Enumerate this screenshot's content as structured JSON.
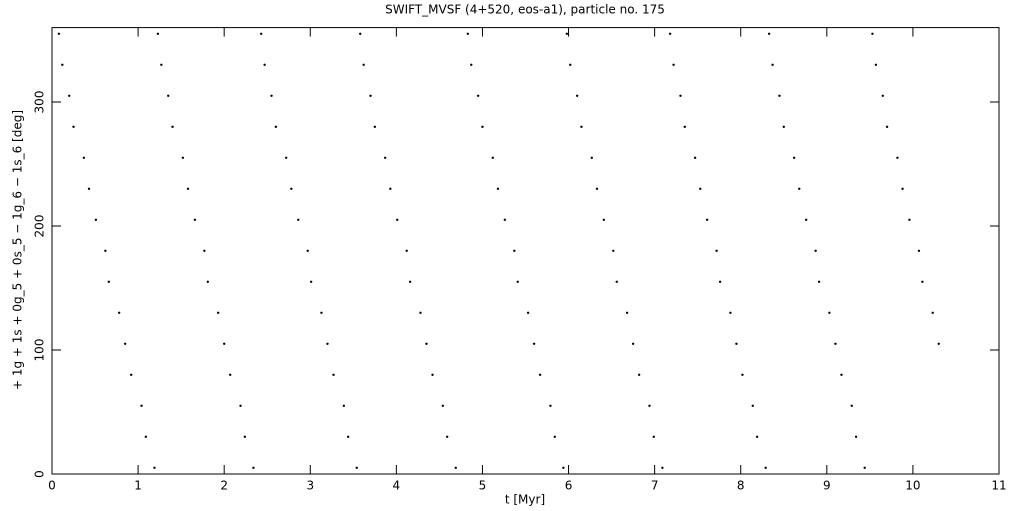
{
  "chart_data": {
    "type": "scatter",
    "title": "SWIFT_MVSF (4+520, eos-a1), particle no. 175",
    "x_label": "t [Myr]",
    "y_label": "+ 1g + 1s + 0g_5 + 0s_5 − 1g_6 − 1s_6 [deg]",
    "xlim": [
      0,
      11
    ],
    "ylim": [
      0,
      360
    ],
    "xticks": [
      0,
      1,
      2,
      3,
      4,
      5,
      6,
      7,
      8,
      9,
      10,
      11
    ],
    "yticks": [
      0,
      100,
      200,
      300
    ],
    "color": "#000000",
    "x": [
      0.08,
      0.12,
      0.2,
      0.25,
      0.37,
      0.43,
      0.51,
      0.62,
      0.66,
      0.78,
      0.85,
      0.92,
      1.04,
      1.09,
      1.19,
      1.23,
      1.27,
      1.35,
      1.4,
      1.52,
      1.58,
      1.66,
      1.77,
      1.81,
      1.93,
      2.0,
      2.07,
      2.19,
      2.24,
      2.34,
      2.43,
      2.47,
      2.55,
      2.6,
      2.72,
      2.78,
      2.86,
      2.97,
      3.01,
      3.13,
      3.2,
      3.27,
      3.39,
      3.44,
      3.54,
      3.58,
      3.62,
      3.7,
      3.75,
      3.87,
      3.93,
      4.01,
      4.12,
      4.16,
      4.28,
      4.35,
      4.42,
      4.54,
      4.59,
      4.69,
      4.83,
      4.87,
      4.95,
      5.0,
      5.12,
      5.18,
      5.26,
      5.37,
      5.41,
      5.53,
      5.6,
      5.67,
      5.79,
      5.84,
      5.94,
      5.98,
      6.02,
      6.1,
      6.15,
      6.27,
      6.33,
      6.41,
      6.52,
      6.56,
      6.68,
      6.75,
      6.82,
      6.94,
      6.99,
      7.09,
      7.18,
      7.22,
      7.3,
      7.35,
      7.47,
      7.53,
      7.61,
      7.72,
      7.76,
      7.88,
      7.95,
      8.02,
      8.14,
      8.19,
      8.29,
      8.33,
      8.37,
      8.45,
      8.5,
      8.62,
      8.68,
      8.76,
      8.87,
      8.91,
      9.03,
      9.1,
      9.17,
      9.29,
      9.34,
      9.44,
      9.53,
      9.57,
      9.65,
      9.7,
      9.82,
      9.88,
      9.96,
      10.07,
      10.11,
      10.23,
      10.3
    ],
    "values": [
      355,
      330,
      305,
      280,
      255,
      230,
      205,
      180,
      155,
      130,
      105,
      80,
      55,
      30,
      5,
      355,
      330,
      305,
      280,
      255,
      230,
      205,
      180,
      155,
      130,
      105,
      80,
      55,
      30,
      5,
      355,
      330,
      305,
      280,
      255,
      230,
      205,
      180,
      155,
      130,
      105,
      80,
      55,
      30,
      5,
      355,
      330,
      305,
      280,
      255,
      230,
      205,
      180,
      155,
      130,
      105,
      80,
      55,
      30,
      5,
      355,
      330,
      305,
      280,
      255,
      230,
      205,
      180,
      155,
      130,
      105,
      80,
      55,
      30,
      5,
      355,
      330,
      305,
      280,
      255,
      230,
      205,
      180,
      155,
      130,
      105,
      80,
      55,
      30,
      5,
      355,
      330,
      305,
      280,
      255,
      230,
      205,
      180,
      155,
      130,
      105,
      80,
      55,
      30,
      5,
      355,
      330,
      305,
      280,
      255,
      230,
      205,
      180,
      155,
      130,
      105,
      80,
      55,
      30,
      5,
      355,
      330,
      305,
      280,
      255,
      230,
      205,
      180,
      155,
      130,
      105
    ]
  }
}
